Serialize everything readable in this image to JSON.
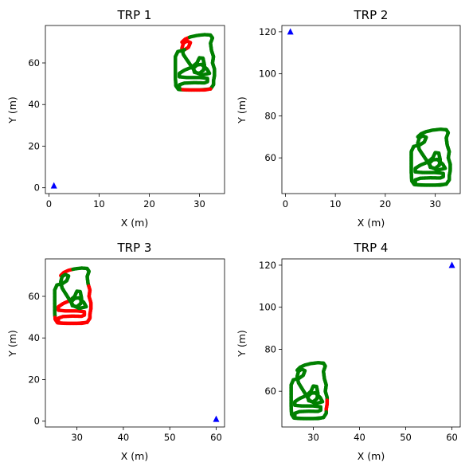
{
  "colors": {
    "inside": "#008000",
    "outside": "#ff0000",
    "trp_marker": "#0000ff"
  },
  "chart_data": [
    {
      "type": "scatter",
      "title": "TRP 1",
      "xlabel": "X (m)",
      "ylabel": "Y (m)",
      "xlim": [
        -0.7,
        35
      ],
      "ylim": [
        -2.8,
        78
      ],
      "xticks": [
        0,
        10,
        20,
        30
      ],
      "yticks": [
        0,
        20,
        40,
        60
      ],
      "trp": {
        "x": 1,
        "y": 1,
        "marker": "triangle"
      },
      "trajectory": "path",
      "red_ranges": [
        [
          0.955,
          1.0
        ],
        [
          0.0,
          0.02
        ],
        [
          0.74,
          0.8
        ]
      ]
    },
    {
      "type": "scatter",
      "title": "TRP 2",
      "xlabel": "X (m)",
      "ylabel": "Y (m)",
      "xlim": [
        -0.7,
        35
      ],
      "ylim": [
        43,
        123
      ],
      "xticks": [
        0,
        10,
        20,
        30
      ],
      "yticks": [
        60,
        80,
        100,
        120
      ],
      "trp": {
        "x": 1,
        "y": 120,
        "marker": "triangle"
      },
      "trajectory": "path",
      "red_ranges": []
    },
    {
      "type": "scatter",
      "title": "TRP 3",
      "xlabel": "X (m)",
      "ylabel": "Y (m)",
      "xlim": [
        23.2,
        61.8
      ],
      "ylim": [
        -2.8,
        78
      ],
      "xticks": [
        30,
        40,
        50,
        60
      ],
      "yticks": [
        0,
        20,
        40,
        60
      ],
      "trp": {
        "x": 60,
        "y": 1,
        "marker": "triangle"
      },
      "trajectory": "path",
      "red_ranges": [
        [
          0.12,
          0.46
        ],
        [
          0.93,
          1.0
        ],
        [
          0.0,
          0.03
        ]
      ]
    },
    {
      "type": "scatter",
      "title": "TRP 4",
      "xlabel": "X (m)",
      "ylabel": "Y (m)",
      "xlim": [
        23.2,
        61.8
      ],
      "ylim": [
        43,
        123
      ],
      "xticks": [
        30,
        40,
        50,
        60
      ],
      "yticks": [
        60,
        80,
        100,
        120
      ],
      "trp": {
        "x": 60,
        "y": 120,
        "marker": "triangle"
      },
      "trajectory": "path",
      "red_ranges": [
        [
          0.19,
          0.23
        ]
      ]
    }
  ],
  "path": [
    [
      26.5,
      70
    ],
    [
      27.2,
      71.5
    ],
    [
      28.2,
      72.5
    ],
    [
      29.5,
      73.2
    ],
    [
      31,
      73.6
    ],
    [
      32.2,
      73.4
    ],
    [
      32.6,
      72
    ],
    [
      32.2,
      69.5
    ],
    [
      32.4,
      66
    ],
    [
      32.8,
      63
    ],
    [
      32.6,
      60
    ],
    [
      33,
      57
    ],
    [
      33,
      54
    ],
    [
      32.8,
      51.5
    ],
    [
      32.8,
      49.5
    ],
    [
      32.2,
      47.5
    ],
    [
      30,
      47
    ],
    [
      27.5,
      47
    ],
    [
      26,
      47.2
    ],
    [
      26,
      49.5
    ],
    [
      27,
      50.3
    ],
    [
      29,
      50.5
    ],
    [
      31,
      50.4
    ],
    [
      31.6,
      51
    ],
    [
      31.6,
      52.6
    ],
    [
      30,
      53
    ],
    [
      27.5,
      53
    ],
    [
      26,
      53.3
    ],
    [
      26,
      55
    ],
    [
      27,
      56.5
    ],
    [
      28.5,
      58
    ],
    [
      29.5,
      60
    ],
    [
      30,
      62.5
    ],
    [
      30.7,
      62.3
    ],
    [
      31,
      59
    ],
    [
      30.8,
      56.5
    ],
    [
      30,
      55
    ],
    [
      29,
      55.5
    ],
    [
      28.8,
      57.5
    ],
    [
      29.5,
      59
    ],
    [
      30.4,
      59.3
    ],
    [
      31.5,
      57
    ],
    [
      32,
      55
    ],
    [
      30.5,
      54.2
    ],
    [
      29.2,
      55.5
    ],
    [
      28.5,
      58
    ],
    [
      27.5,
      61.5
    ],
    [
      26.8,
      64
    ],
    [
      26.5,
      67
    ],
    [
      26.8,
      69.5
    ],
    [
      27.5,
      70.5
    ],
    [
      28.2,
      69.8
    ],
    [
      27.8,
      67.5
    ],
    [
      26.8,
      66
    ],
    [
      25.7,
      65.5
    ],
    [
      25.2,
      63
    ],
    [
      25.2,
      58
    ],
    [
      25.2,
      53
    ],
    [
      25.3,
      49
    ],
    [
      25.8,
      47.3
    ],
    [
      28,
      47
    ],
    [
      31,
      47
    ],
    [
      32.2,
      47.5
    ]
  ]
}
